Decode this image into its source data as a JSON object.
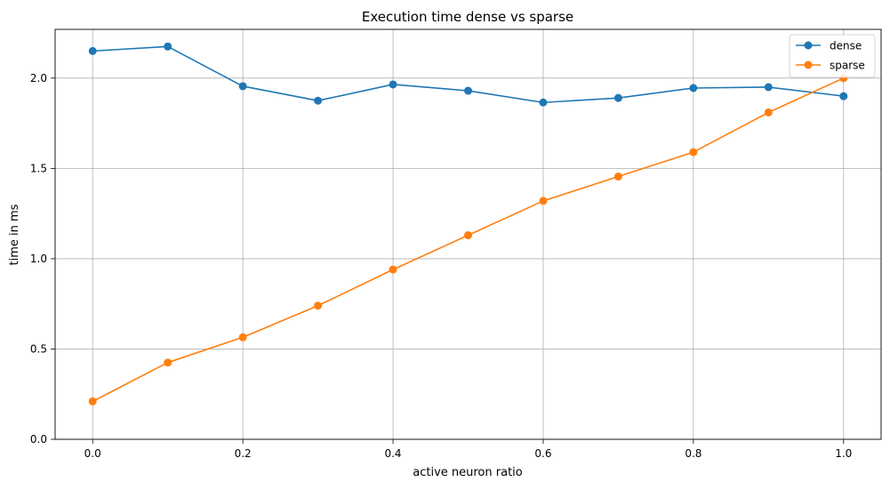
{
  "chart_data": {
    "type": "line",
    "title": "Execution time dense vs sparse",
    "xlabel": "active neuron ratio",
    "ylabel": "time in ms",
    "x": [
      0.0,
      0.1,
      0.2,
      0.3,
      0.4,
      0.5,
      0.6,
      0.7,
      0.8,
      0.9,
      1.0
    ],
    "xlim": [
      -0.05,
      1.05
    ],
    "ylim": [
      0.0,
      2.27
    ],
    "xticks": [
      0.0,
      0.2,
      0.4,
      0.6,
      0.8,
      1.0
    ],
    "xtick_labels": [
      "0.0",
      "0.2",
      "0.4",
      "0.6",
      "0.8",
      "1.0"
    ],
    "yticks": [
      0.0,
      0.5,
      1.0,
      1.5,
      2.0
    ],
    "ytick_labels": [
      "0.0",
      "0.5",
      "1.0",
      "1.5",
      "2.0"
    ],
    "grid": true,
    "legend_position": "top-right",
    "series": [
      {
        "name": "dense",
        "color": "#1f77b4",
        "marker": "circle",
        "values": [
          2.15,
          2.175,
          1.955,
          1.875,
          1.965,
          1.93,
          1.865,
          1.89,
          1.945,
          1.95,
          1.9
        ]
      },
      {
        "name": "sparse",
        "color": "#ff7f0e",
        "marker": "circle",
        "values": [
          0.21,
          0.425,
          0.565,
          0.74,
          0.94,
          1.13,
          1.32,
          1.455,
          1.59,
          1.81,
          2.0
        ]
      }
    ]
  }
}
